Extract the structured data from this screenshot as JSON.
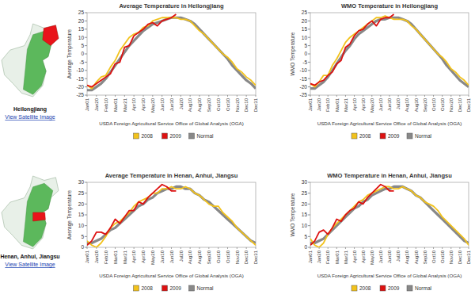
{
  "chart_data": [
    {
      "type": "line",
      "title": "Average Temperature in Heilongjiang",
      "y_label": "Average Temperature",
      "x_label": "USDA Foreign Agricultural Service Office of Global Analysis (OGA)",
      "grid": false,
      "legend": "bottom",
      "categories": [
        "Jan01",
        null,
        "Jan20",
        null,
        "Feb10",
        null,
        "Mar01",
        null,
        "Mar21",
        null,
        "Apr10",
        null,
        "Apr30",
        null,
        "May20",
        null,
        "Jun10",
        null,
        "Jun30",
        null,
        "Jul20",
        null,
        "Aug10",
        null,
        "Aug30",
        null,
        "Sep20",
        null,
        "Oct10",
        null,
        "Oct30",
        null,
        "Nov20",
        null,
        "Dec10",
        null,
        "Dec31"
      ],
      "ylim": [
        -25,
        25
      ],
      "yticks": [
        -25,
        -20,
        -15,
        -10,
        -5,
        0,
        5,
        10,
        15,
        20,
        25
      ],
      "series": [
        {
          "name": "2008",
          "color": "#f2c21b",
          "values": [
            -19,
            -21,
            -17,
            -14,
            -13,
            -8,
            -4,
            2,
            6,
            10,
            12,
            13,
            16,
            17,
            20,
            21,
            22,
            22,
            22,
            22,
            21,
            21,
            20,
            17,
            14,
            12,
            9,
            6,
            3,
            0,
            -2,
            -5,
            -9,
            -11,
            -14,
            -16,
            -19
          ]
        },
        {
          "name": "2009",
          "color": "#dd1111",
          "values": [
            -19,
            -20,
            -18,
            -16,
            -14,
            -12,
            -6,
            -5,
            4,
            5,
            11,
            13,
            15,
            18,
            19,
            17,
            20,
            21,
            22,
            24,
            null,
            null,
            null,
            null,
            null,
            null,
            null,
            null,
            null,
            null,
            null,
            null,
            null,
            null,
            null,
            null,
            null
          ]
        },
        {
          "name": "Normal",
          "color": "#888888",
          "values": [
            -22,
            -22,
            -20,
            -18,
            -15,
            -11,
            -7,
            -3,
            1,
            5,
            8,
            11,
            14,
            16,
            18,
            19,
            20,
            21,
            22,
            22,
            22,
            21,
            20,
            18,
            15,
            12,
            9,
            6,
            3,
            0,
            -3,
            -7,
            -10,
            -13,
            -16,
            -18,
            -21
          ]
        }
      ]
    },
    {
      "type": "line",
      "title": "WMO Temperature in Heilongjiang",
      "y_label": "WMO Temperature",
      "x_label": "USDA Foreign Agricultural Service Office of Global Analysis (OGA)",
      "grid": false,
      "legend": "bottom",
      "categories": [
        "Jan01",
        null,
        "Jan20",
        null,
        "Feb10",
        null,
        "Mar01",
        null,
        "Mar21",
        null,
        "Apr10",
        null,
        "Apr30",
        null,
        "May20",
        null,
        "Jun10",
        null,
        "Jun30",
        null,
        "Jul20",
        null,
        "Aug10",
        null,
        "Aug30",
        null,
        "Sep20",
        null,
        "Oct10",
        null,
        "Oct30",
        null,
        "Nov20",
        null,
        "Dec10",
        null,
        "Dec31"
      ],
      "ylim": [
        -25,
        25
      ],
      "yticks": [
        -25,
        -20,
        -15,
        -10,
        -5,
        0,
        5,
        10,
        15,
        20,
        25
      ],
      "series": [
        {
          "name": "2008",
          "color": "#f2c21b",
          "values": [
            -18,
            -20,
            -17,
            -13,
            -13,
            -7,
            -3,
            2,
            7,
            10,
            12,
            14,
            16,
            18,
            20,
            22,
            22,
            23,
            22,
            21,
            21,
            21,
            20,
            17,
            15,
            12,
            9,
            6,
            3,
            0,
            -2,
            -5,
            -9,
            -11,
            -14,
            -16,
            -19
          ]
        },
        {
          "name": "2009",
          "color": "#dd1111",
          "values": [
            -18,
            -19,
            -17,
            -16,
            -13,
            -11,
            -6,
            -4,
            4,
            6,
            11,
            14,
            15,
            18,
            20,
            17,
            21,
            22,
            22,
            24,
            null,
            null,
            null,
            null,
            null,
            null,
            null,
            null,
            null,
            null,
            null,
            null,
            null,
            null,
            null,
            null,
            null
          ]
        },
        {
          "name": "Normal",
          "color": "#888888",
          "values": [
            -21,
            -21,
            -19,
            -17,
            -14,
            -10,
            -6,
            -2,
            2,
            5,
            9,
            12,
            14,
            16,
            18,
            20,
            21,
            21,
            22,
            22,
            22,
            21,
            20,
            18,
            15,
            12,
            9,
            6,
            3,
            0,
            -3,
            -7,
            -10,
            -13,
            -16,
            -18,
            -20
          ]
        }
      ]
    },
    {
      "type": "line",
      "title": "Average Temperature in Henan, Anhui, Jiangsu",
      "y_label": "Average Temperature",
      "x_label": "USDA Foreign Agricultural Service Office of Global Analysis (OGA)",
      "grid": false,
      "legend": "bottom",
      "categories": [
        "Jan01",
        null,
        "Jan20",
        null,
        "Feb10",
        null,
        "Mar01",
        null,
        "Mar21",
        null,
        "Apr10",
        null,
        "Apr30",
        null,
        "May20",
        null,
        "Jun10",
        null,
        "Jun30",
        null,
        "Jul20",
        null,
        "Aug10",
        null,
        "Aug30",
        null,
        "Sep20",
        null,
        "Oct10",
        null,
        "Oct30",
        null,
        "Nov20",
        null,
        "Dec10",
        null,
        "Dec31"
      ],
      "ylim": [
        0,
        30
      ],
      "yticks": [
        0,
        5,
        10,
        15,
        20,
        25,
        30
      ],
      "series": [
        {
          "name": "2008",
          "color": "#f2c21b",
          "values": [
            3,
            1,
            0,
            2,
            5,
            9,
            11,
            12,
            14,
            16,
            19,
            21,
            22,
            23,
            25,
            25,
            27,
            27,
            28,
            27,
            27,
            28,
            27,
            25,
            24,
            22,
            20,
            19,
            19,
            16,
            14,
            12,
            9,
            7,
            5,
            3,
            1
          ]
        },
        {
          "name": "2009",
          "color": "#dd1111",
          "values": [
            1,
            3,
            7,
            7,
            6,
            9,
            13,
            11,
            14,
            17,
            17,
            21,
            20,
            23,
            25,
            27,
            29,
            28,
            26,
            26,
            null,
            null,
            null,
            null,
            null,
            null,
            null,
            null,
            null,
            null,
            null,
            null,
            null,
            null,
            null,
            null,
            null
          ]
        },
        {
          "name": "Normal",
          "color": "#888888",
          "values": [
            2,
            2,
            3,
            4,
            6,
            8,
            9,
            11,
            13,
            15,
            17,
            19,
            20,
            22,
            23,
            25,
            26,
            27,
            27,
            28,
            28,
            27,
            27,
            25,
            24,
            22,
            21,
            19,
            17,
            15,
            13,
            11,
            9,
            7,
            5,
            3,
            2
          ]
        }
      ]
    },
    {
      "type": "line",
      "title": "WMO Temperature in Henan, Anhui, Jiangsu",
      "y_label": "WMO Temperature",
      "x_label": "USDA Foreign Agricultural Service Office of Global Analysis (OGA)",
      "grid": false,
      "legend": "bottom",
      "categories": [
        "Jan01",
        null,
        "Jan20",
        null,
        "Feb10",
        null,
        "Mar01",
        null,
        "Mar21",
        null,
        "Apr10",
        null,
        "Apr30",
        null,
        "May20",
        null,
        "Jun10",
        null,
        "Jun30",
        null,
        "Jul20",
        null,
        "Aug10",
        null,
        "Aug30",
        null,
        "Sep20",
        null,
        "Oct10",
        null,
        "Oct30",
        null,
        "Nov20",
        null,
        "Dec10",
        null,
        "Dec31"
      ],
      "ylim": [
        0,
        30
      ],
      "yticks": [
        0,
        5,
        10,
        15,
        20,
        25,
        30
      ],
      "series": [
        {
          "name": "2008",
          "color": "#f2c21b",
          "values": [
            4,
            1,
            0,
            2,
            6,
            9,
            11,
            13,
            15,
            17,
            19,
            21,
            22,
            24,
            25,
            26,
            27,
            28,
            28,
            27,
            27,
            28,
            27,
            26,
            24,
            23,
            21,
            20,
            19,
            17,
            14,
            12,
            10,
            8,
            6,
            4,
            1
          ]
        },
        {
          "name": "2009",
          "color": "#dd1111",
          "values": [
            1,
            3,
            7,
            8,
            6,
            9,
            13,
            12,
            15,
            17,
            18,
            21,
            20,
            23,
            25,
            27,
            29,
            28,
            26,
            26,
            null,
            null,
            null,
            null,
            null,
            null,
            null,
            null,
            null,
            null,
            null,
            null,
            null,
            null,
            null,
            null,
            null
          ]
        },
        {
          "name": "Normal",
          "color": "#888888",
          "values": [
            2,
            2,
            3,
            4,
            6,
            8,
            10,
            12,
            14,
            16,
            18,
            19,
            21,
            22,
            24,
            25,
            26,
            27,
            27,
            28,
            28,
            28,
            27,
            26,
            24,
            23,
            21,
            19,
            17,
            15,
            13,
            11,
            9,
            7,
            5,
            3,
            2
          ]
        }
      ]
    }
  ],
  "regions": [
    {
      "label": "Heilongjiang",
      "link": "View Satellite Image"
    },
    {
      "label": "Henan, Anhui, Jiangsu",
      "link": "View Satellite Image"
    }
  ]
}
